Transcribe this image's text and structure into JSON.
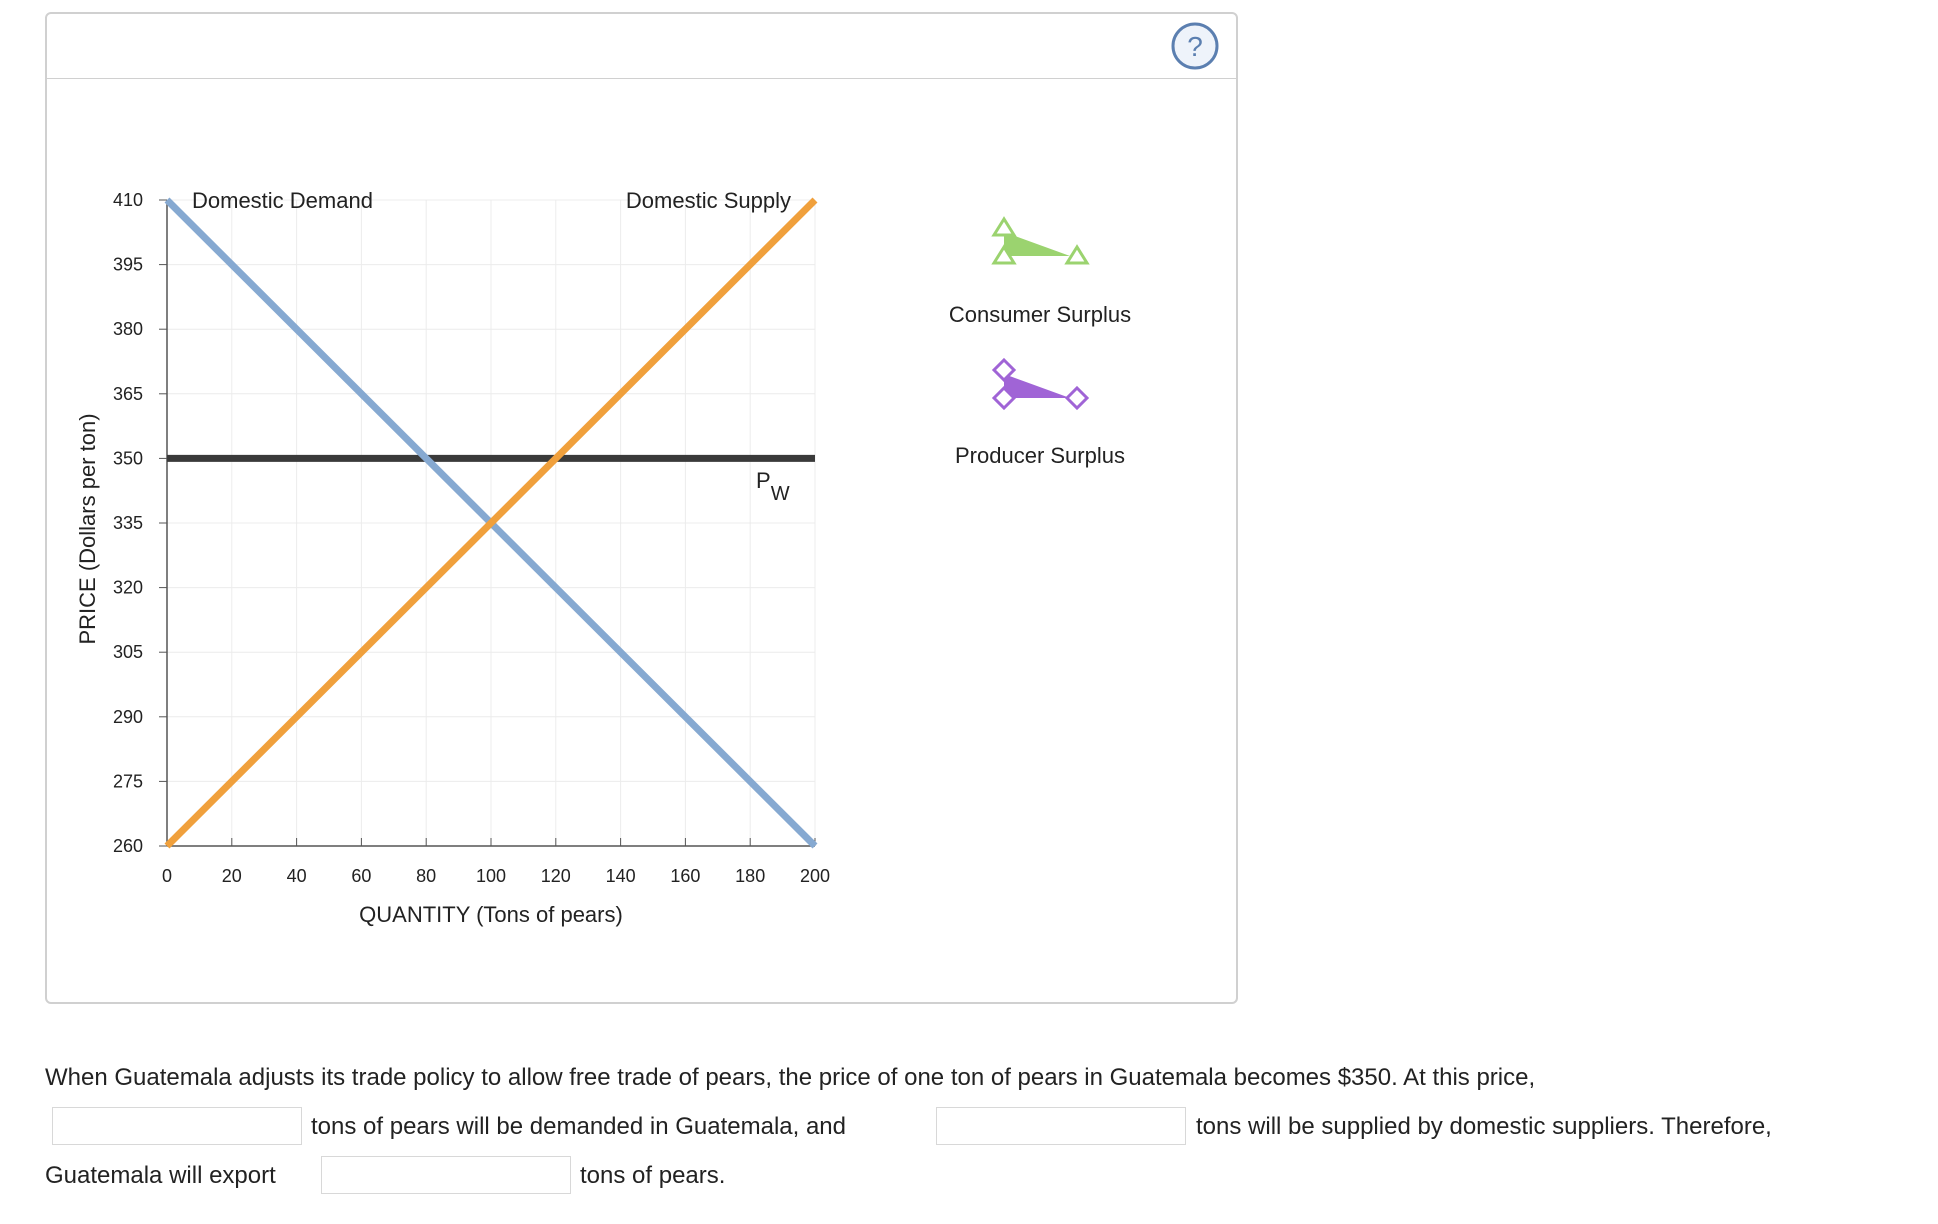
{
  "chart_data": {
    "type": "line",
    "x": [
      0,
      200
    ],
    "series": [
      {
        "name": "Domestic Demand",
        "color": "#86a9d1",
        "values": [
          410,
          260
        ]
      },
      {
        "name": "Domestic Supply",
        "color": "#f0a03c",
        "values": [
          260,
          410
        ]
      }
    ],
    "world_price": {
      "label": "P",
      "subscript": "W",
      "value": 350,
      "color": "#3a3a3a"
    },
    "xlabel": "QUANTITY (Tons of pears)",
    "ylabel": "PRICE (Dollars per ton)",
    "xlim": [
      0,
      200
    ],
    "xticks": [
      0,
      20,
      40,
      60,
      80,
      100,
      120,
      140,
      160,
      180,
      200
    ],
    "ylim": [
      260,
      410
    ],
    "yticks": [
      260,
      275,
      290,
      305,
      320,
      335,
      350,
      365,
      380,
      395,
      410
    ],
    "grid": true,
    "legend": [
      {
        "name": "Consumer Surplus",
        "color": "#9bd36f",
        "marker": "triangle"
      },
      {
        "name": "Producer Surplus",
        "color": "#a064d6",
        "marker": "diamond"
      }
    ]
  },
  "question": {
    "line1": "When Guatemala adjusts its trade policy to allow free trade of pears, the price of one ton of pears in Guatemala becomes $350. At this price,",
    "after_blank1": "tons of pears will be demanded in Guatemala, and",
    "after_blank2": "tons will be supplied by domestic suppliers. Therefore,",
    "before_blank3": "Guatemala will export",
    "after_blank3": "tons of pears."
  }
}
